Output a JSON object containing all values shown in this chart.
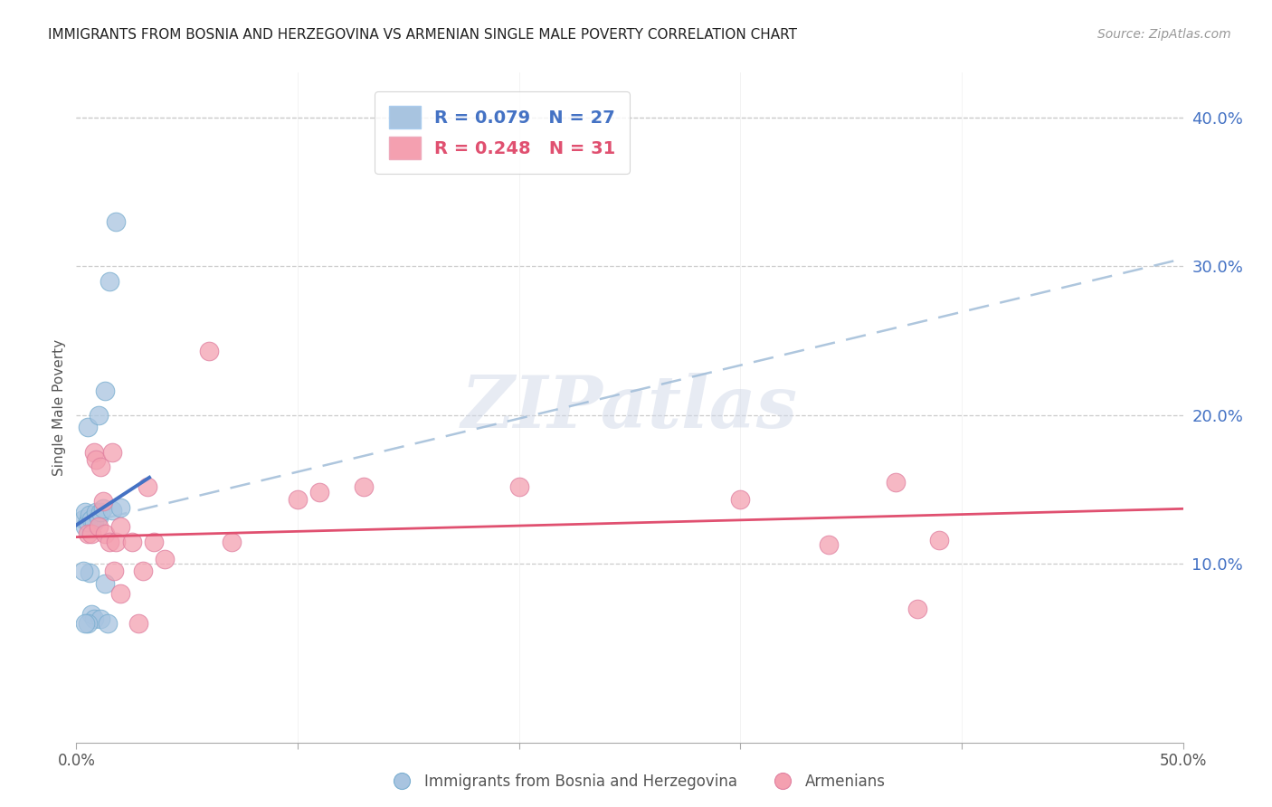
{
  "title": "IMMIGRANTS FROM BOSNIA AND HERZEGOVINA VS ARMENIAN SINGLE MALE POVERTY CORRELATION CHART",
  "source": "Source: ZipAtlas.com",
  "ylabel": "Single Male Poverty",
  "xlim": [
    0.0,
    0.5
  ],
  "ylim": [
    -0.02,
    0.43
  ],
  "xticks": [
    0.0,
    0.1,
    0.2,
    0.3,
    0.4,
    0.5
  ],
  "xtick_labels": [
    "0.0%",
    "",
    "",
    "",
    "",
    "50.0%"
  ],
  "yticks_right": [
    0.1,
    0.2,
    0.3,
    0.4
  ],
  "ytick_labels_right": [
    "10.0%",
    "20.0%",
    "30.0%",
    "40.0%"
  ],
  "legend_label1": "Immigrants from Bosnia and Herzegovina",
  "legend_label2": "Armenians",
  "R1": "0.079",
  "N1": "27",
  "R2": "0.248",
  "N2": "31",
  "color_blue": "#a8c4e0",
  "color_pink": "#f4a0b0",
  "line_blue": "#4472c4",
  "line_pink": "#e05070",
  "line_dashed": "#a0bcd8",
  "blue_x": [
    0.003,
    0.004,
    0.004,
    0.005,
    0.005,
    0.006,
    0.006,
    0.007,
    0.007,
    0.008,
    0.008,
    0.009,
    0.01,
    0.01,
    0.011,
    0.011,
    0.012,
    0.013,
    0.013,
    0.014,
    0.015,
    0.016,
    0.018,
    0.02,
    0.005,
    0.004,
    0.003
  ],
  "blue_y": [
    0.13,
    0.125,
    0.135,
    0.128,
    0.192,
    0.133,
    0.094,
    0.13,
    0.066,
    0.128,
    0.063,
    0.135,
    0.131,
    0.2,
    0.135,
    0.063,
    0.137,
    0.216,
    0.087,
    0.06,
    0.29,
    0.136,
    0.33,
    0.138,
    0.06,
    0.06,
    0.095
  ],
  "pink_x": [
    0.005,
    0.007,
    0.008,
    0.009,
    0.01,
    0.011,
    0.012,
    0.013,
    0.015,
    0.016,
    0.017,
    0.018,
    0.02,
    0.02,
    0.025,
    0.028,
    0.03,
    0.032,
    0.035,
    0.04,
    0.06,
    0.07,
    0.1,
    0.11,
    0.13,
    0.2,
    0.3,
    0.34,
    0.37,
    0.38,
    0.39
  ],
  "pink_y": [
    0.12,
    0.12,
    0.175,
    0.17,
    0.125,
    0.165,
    0.142,
    0.12,
    0.115,
    0.175,
    0.095,
    0.115,
    0.125,
    0.08,
    0.115,
    0.06,
    0.095,
    0.152,
    0.115,
    0.103,
    0.243,
    0.115,
    0.143,
    0.148,
    0.152,
    0.152,
    0.143,
    0.113,
    0.155,
    0.07,
    0.116
  ],
  "blue_line_x": [
    0.0,
    0.033
  ],
  "blue_line_y": [
    0.126,
    0.158
  ],
  "pink_line_x": [
    0.0,
    0.5
  ],
  "pink_line_y_intercept": 0.118,
  "pink_line_slope": 0.038,
  "dashed_line_x0": 0.0,
  "dashed_line_x1": 0.5,
  "dashed_line_y0": 0.126,
  "dashed_line_y1": 0.305
}
